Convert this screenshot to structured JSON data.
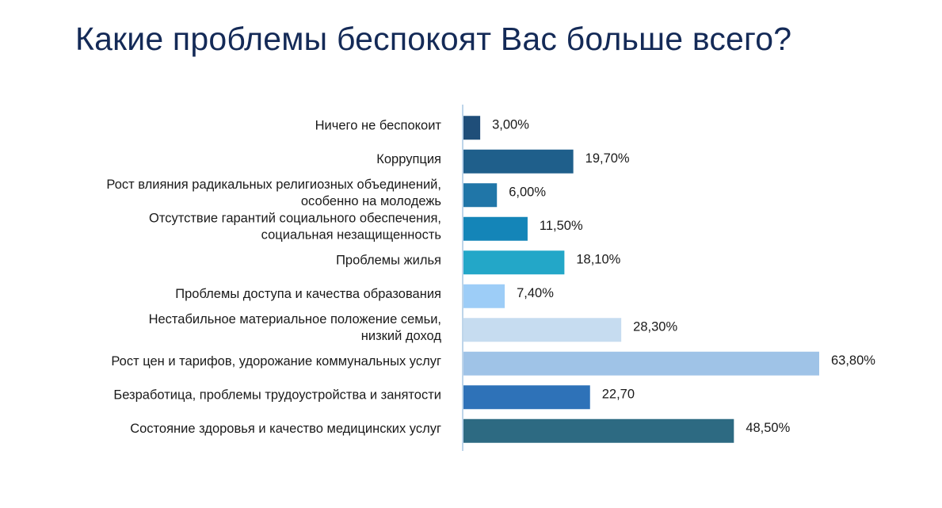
{
  "page": {
    "title": "Какие проблемы беспокоят Вас больше всего?"
  },
  "chart_data": {
    "type": "bar",
    "orientation": "horizontal",
    "title": "Какие проблемы беспокоят Вас больше всего?",
    "xlabel": "",
    "ylabel": "",
    "xlim": [
      0,
      64
    ],
    "grid": false,
    "legend": "none",
    "categories": [
      [
        "Ничего не беспокоит"
      ],
      [
        "Коррупция"
      ],
      [
        "Рост влияния радикальных религиозных объединений,",
        "особенно на молодежь"
      ],
      [
        "Отсутствие гарантий социального обеспечения,",
        "социальная незащищенность"
      ],
      [
        "Проблемы жилья"
      ],
      [
        "Проблемы доступа и качества образования"
      ],
      [
        "Нестабильное материальное положение семьи,",
        "низкий доход"
      ],
      [
        "Рост цен и тарифов, удорожание коммунальных услуг"
      ],
      [
        "Безработица, проблемы трудоустройства и занятости"
      ],
      [
        "Состояние  здоровья и качество медицинских  услуг"
      ]
    ],
    "values": [
      3.0,
      19.7,
      6.0,
      11.5,
      18.1,
      7.4,
      28.3,
      63.8,
      22.7,
      48.5
    ],
    "value_labels": [
      "3,00%",
      "19,70%",
      "6,00%",
      "11,50%",
      "18,10%",
      "7,40%",
      "28,30%",
      "63,80%",
      "22,70",
      "48,50%"
    ],
    "colors": [
      "#1f4e79",
      "#1f5f8b",
      "#2076a8",
      "#1485b8",
      "#23a7c8",
      "#9dcdf7",
      "#c6dcf0",
      "#9fc3e7",
      "#2e72b8",
      "#2d6a82"
    ]
  }
}
